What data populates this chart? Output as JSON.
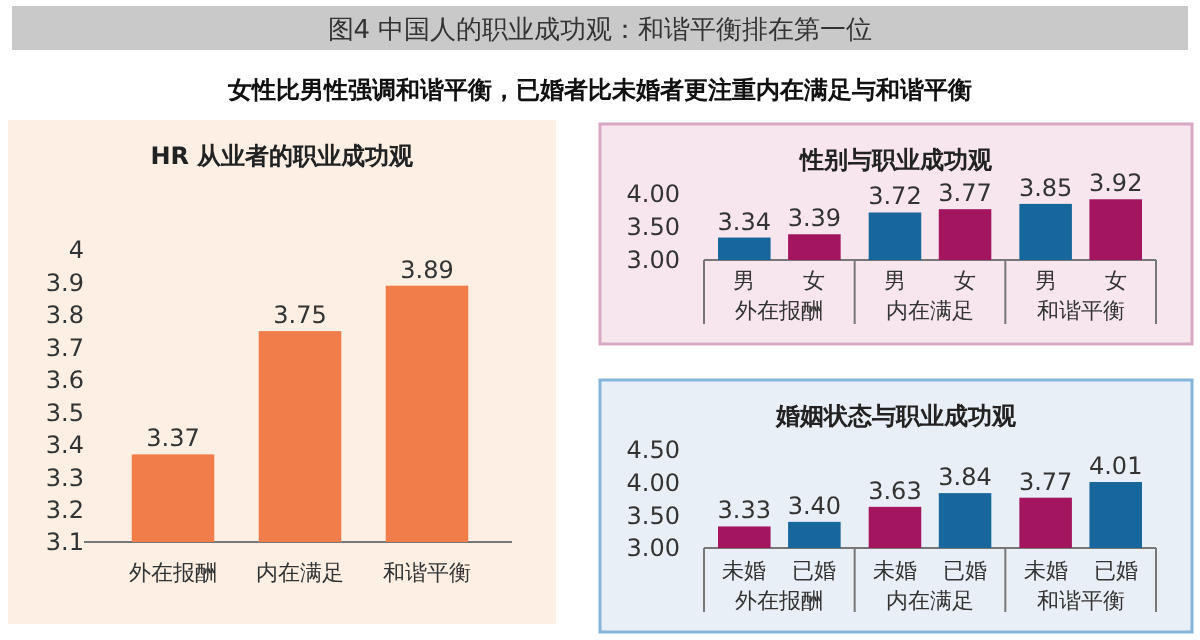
{
  "chart_data": [
    {
      "type": "bar",
      "title": "HR 从业者的职业成功观",
      "annotations": [
        "图4  中国人的职业成功观：和谐平衡排在第一位",
        "女性比男性强调和谐平衡，已婚者比未婚者更注重内在满足与和谐平衡"
      ],
      "categories": [
        "外在报酬",
        "内在满足",
        "和谐平衡"
      ],
      "values": [
        3.37,
        3.75,
        3.89
      ],
      "color": "#f07d4a",
      "ylim": [
        3.1,
        4
      ],
      "yticks": [
        3.1,
        3.2,
        3.3,
        3.4,
        3.5,
        3.6,
        3.7,
        3.8,
        3.9,
        4
      ],
      "data_labels": true
    },
    {
      "type": "bar",
      "title": "性别与职业成功观",
      "categories": [
        "外在报酬",
        "内在满足",
        "和谐平衡"
      ],
      "series": [
        {
          "name": "男",
          "color": "#17679c",
          "values": [
            3.34,
            3.72,
            3.85
          ]
        },
        {
          "name": "女",
          "color": "#a3155f",
          "values": [
            3.39,
            3.77,
            3.92
          ]
        }
      ],
      "ylim": [
        3,
        4
      ],
      "yticks": [
        {
          "value": 3,
          "label": "3.00"
        },
        {
          "value": 3.5,
          "label": "3.50"
        },
        {
          "value": 4,
          "label": "4.00"
        }
      ],
      "data_labels": true
    },
    {
      "type": "bar",
      "title": "婚姻状态与职业成功观",
      "categories": [
        "外在报酬",
        "内在满足",
        "和谐平衡"
      ],
      "series": [
        {
          "name": "未婚",
          "color": "#a3155f",
          "values": [
            3.33,
            3.63,
            3.77
          ],
          "value_labels": [
            "3.33",
            "3.63",
            "3.77"
          ]
        },
        {
          "name": "已婚",
          "color": "#17679c",
          "values": [
            3.4,
            3.84,
            4.01
          ],
          "value_labels": [
            "3.40",
            "3.84",
            "4.01"
          ]
        }
      ],
      "ylim": [
        3,
        4.5
      ],
      "yticks": [
        {
          "value": 3,
          "label": "3.00"
        },
        {
          "value": 3.5,
          "label": "3.50"
        },
        {
          "value": 4,
          "label": "4.00"
        },
        {
          "value": 4.5,
          "label": "4.50"
        }
      ]
    }
  ]
}
